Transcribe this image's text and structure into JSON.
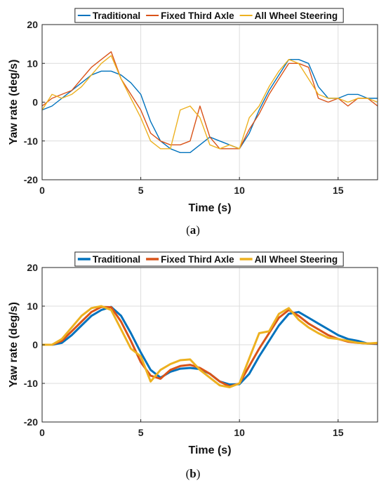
{
  "chart_data": [
    {
      "type": "line",
      "caption_letter": "a",
      "xlabel": "Time (s)",
      "ylabel": "Yaw rate (deg/s)",
      "xlim": [
        0,
        17
      ],
      "ylim": [
        -20,
        20
      ],
      "xticks": [
        0,
        5,
        10,
        15
      ],
      "yticks": [
        -20,
        -10,
        0,
        10,
        20
      ],
      "grid": true,
      "legend_position": "top",
      "series": [
        {
          "name": "Traditional",
          "color": "#0072BD",
          "x": [
            0,
            0.5,
            1,
            1.5,
            2,
            2.5,
            3,
            3.5,
            4,
            4.5,
            5,
            5.5,
            6,
            6.5,
            7,
            7.5,
            8,
            8.5,
            9,
            9.5,
            10,
            10.5,
            11,
            11.5,
            12,
            12.5,
            13,
            13.5,
            14,
            14.5,
            15,
            15.5,
            16,
            16.5,
            17
          ],
          "y": [
            -2,
            -1,
            1,
            3,
            5,
            7,
            8,
            8,
            7,
            5,
            2,
            -5,
            -10,
            -12,
            -13,
            -13,
            -11,
            -9,
            -10,
            -11,
            -12,
            -8,
            -2,
            3,
            7,
            11,
            11,
            10,
            4,
            1,
            1,
            2,
            2,
            1,
            1
          ]
        },
        {
          "name": "Fixed Third Axle",
          "color": "#D95319",
          "x": [
            0,
            0.5,
            1,
            1.5,
            2,
            2.5,
            3,
            3.5,
            4,
            4.5,
            5,
            5.5,
            6,
            6.5,
            7,
            7.5,
            8,
            8.5,
            9,
            9.5,
            10,
            10.5,
            11,
            11.5,
            12,
            12.5,
            13,
            13.5,
            14,
            14.5,
            15,
            15.5,
            16,
            16.5,
            17
          ],
          "y": [
            -1,
            1,
            2,
            3,
            6,
            9,
            11,
            13,
            6,
            2,
            -2,
            -8,
            -10,
            -11,
            -11,
            -10,
            -1,
            -9,
            -12,
            -12,
            -12,
            -7,
            -3,
            2,
            6,
            10,
            10,
            9,
            1,
            0,
            1,
            -1,
            1,
            1,
            -1
          ]
        },
        {
          "name": "All Wheel Steering",
          "color": "#EDB120",
          "x": [
            0,
            0.5,
            1,
            1.5,
            2,
            2.5,
            3,
            3.5,
            4,
            4.5,
            5,
            5.5,
            6,
            6.5,
            7,
            7.5,
            8,
            8.5,
            9,
            9.5,
            10,
            10.5,
            11,
            11.5,
            12,
            12.5,
            13,
            13.5,
            14,
            14.5,
            15,
            15.5,
            16,
            16.5,
            17
          ],
          "y": [
            -2,
            2,
            1,
            2,
            4,
            7,
            10,
            12,
            6,
            1,
            -4,
            -10,
            -12,
            -12,
            -2,
            -1,
            -4,
            -11,
            -12,
            -11,
            -12,
            -4,
            -1,
            4,
            8,
            11,
            10,
            6,
            2,
            1,
            1,
            0,
            1,
            1,
            0
          ]
        }
      ]
    },
    {
      "type": "line",
      "caption_letter": "b",
      "xlabel": "Time (s)",
      "ylabel": "Yaw rate (deg/s)",
      "xlim": [
        0,
        17
      ],
      "ylim": [
        -20,
        20
      ],
      "xticks": [
        0,
        5,
        10,
        15
      ],
      "yticks": [
        -20,
        -10,
        0,
        10,
        20
      ],
      "grid": true,
      "legend_position": "top",
      "series": [
        {
          "name": "Traditional",
          "color": "#0072BD",
          "x": [
            0,
            0.5,
            1,
            1.5,
            2,
            2.5,
            3,
            3.5,
            4,
            4.5,
            5,
            5.5,
            6,
            6.5,
            7,
            7.5,
            8,
            8.5,
            9,
            9.5,
            10,
            10.5,
            11,
            11.5,
            12,
            12.5,
            13,
            13.5,
            14,
            14.5,
            15,
            15.5,
            16,
            16.5,
            17
          ],
          "y": [
            0,
            0,
            0.5,
            2.5,
            5,
            7.5,
            9,
            9.8,
            7.5,
            3,
            -2,
            -6.5,
            -8.5,
            -7,
            -6.2,
            -6,
            -6.3,
            -7.5,
            -9.5,
            -10.3,
            -10.2,
            -7.5,
            -3,
            1,
            5,
            8,
            8.5,
            7,
            5.5,
            4,
            2.5,
            1.5,
            1,
            0.3,
            0.2
          ]
        },
        {
          "name": "Fixed Third Axle",
          "color": "#D95319",
          "x": [
            0,
            0.5,
            1,
            1.5,
            2,
            2.5,
            3,
            3.5,
            4,
            4.5,
            5,
            5.5,
            6,
            6.5,
            7,
            7.5,
            8,
            8.5,
            9,
            9.5,
            10,
            10.5,
            11,
            11.5,
            12,
            12.5,
            13,
            13.5,
            14,
            14.5,
            15,
            15.5,
            16,
            16.5,
            17
          ],
          "y": [
            0,
            0,
            1,
            3.5,
            6,
            8.5,
            9.8,
            9.7,
            6,
            1,
            -4.5,
            -8,
            -8.8,
            -6.5,
            -5.5,
            -5.2,
            -6,
            -7.5,
            -9.5,
            -10.8,
            -10,
            -5.5,
            -1,
            3,
            7,
            9,
            7.5,
            5.5,
            4,
            2.5,
            1.5,
            0.8,
            0.5,
            0.3,
            0.3
          ]
        },
        {
          "name": "All Wheel Steering",
          "color": "#EDB120",
          "x": [
            0,
            0.5,
            1,
            1.5,
            2,
            2.5,
            3,
            3.5,
            4,
            4.5,
            5,
            5.5,
            6,
            6.5,
            7,
            7.5,
            8,
            8.5,
            9,
            9.5,
            10,
            10.5,
            11,
            11.5,
            12,
            12.5,
            13,
            13.5,
            14,
            14.5,
            15,
            15.5,
            16,
            16.5,
            17
          ],
          "y": [
            0,
            0,
            1.5,
            4.5,
            7.5,
            9.5,
            10,
            9,
            4,
            -1,
            -3,
            -9.5,
            -6.5,
            -5,
            -4,
            -3.8,
            -6.5,
            -8.5,
            -10.5,
            -11,
            -10,
            -3.5,
            3,
            3.5,
            8,
            9.5,
            6.5,
            4.5,
            3,
            1.8,
            1.5,
            1,
            0.5,
            0.3,
            0.5
          ]
        }
      ]
    }
  ]
}
